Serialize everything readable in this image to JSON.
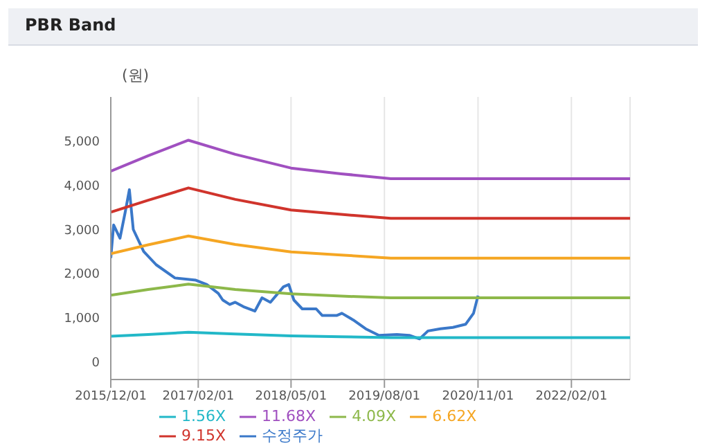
{
  "chart_data": {
    "type": "line",
    "title": "PBR Band",
    "ylabel": "(원)",
    "xlim": [
      "2015-12-01",
      "2022-11-15"
    ],
    "xticks": [
      {
        "value": "2015-12-01",
        "label": "2015/12/01"
      },
      {
        "value": "2017-02-01",
        "label": "2017/02/01"
      },
      {
        "value": "2018-05-01",
        "label": "2018/05/01"
      },
      {
        "value": "2019-08-01",
        "label": "2019/08/01"
      },
      {
        "value": "2020-11-01",
        "label": "2020/11/01"
      },
      {
        "value": "2022-02-01",
        "label": "2022/02/01"
      }
    ],
    "ylim": [
      -400,
      6000
    ],
    "yticks": [
      0,
      {
        "value": 1000,
        "label": "1,000"
      },
      {
        "value": 2000,
        "label": "2,000"
      },
      {
        "value": 3000,
        "label": "3,000"
      },
      {
        "value": 4000,
        "label": "4,000"
      },
      {
        "value": 5000,
        "label": "5,000"
      }
    ],
    "grid": "x",
    "legend": "bottom",
    "marker": "none",
    "line_style": "solid",
    "series": [
      {
        "name": "수정주가",
        "color": "#3a78c9",
        "x": [
          "2015-12-01",
          "2015-12-15",
          "2016-01-15",
          "2016-02-10",
          "2016-03-01",
          "2016-03-20",
          "2016-05-10",
          "2016-07-10",
          "2016-10-10",
          "2017-01-20",
          "2017-03-15",
          "2017-05-10",
          "2017-06-01",
          "2017-07-05",
          "2017-08-01",
          "2017-09-10",
          "2017-11-05",
          "2017-12-10",
          "2018-01-20",
          "2018-03-25",
          "2018-04-20",
          "2018-05-15",
          "2018-06-25",
          "2018-09-01",
          "2018-10-01",
          "2018-12-10",
          "2019-01-05",
          "2019-03-01",
          "2019-05-01",
          "2019-07-05",
          "2019-10-01",
          "2019-12-01",
          "2020-01-20",
          "2020-03-01",
          "2020-05-01",
          "2020-07-01",
          "2020-09-01",
          "2020-10-10",
          "2020-11-01"
        ],
        "values": [
          2350,
          3100,
          2800,
          3400,
          3900,
          3000,
          2500,
          2200,
          1900,
          1850,
          1750,
          1550,
          1400,
          1300,
          1350,
          1250,
          1150,
          1450,
          1350,
          1700,
          1750,
          1400,
          1200,
          1200,
          1050,
          1050,
          1100,
          950,
          750,
          600,
          620,
          600,
          520,
          700,
          750,
          780,
          850,
          1100,
          1500
        ]
      },
      {
        "name": "1.56X",
        "color": "#22b8c8",
        "x": [
          "2015-12-01",
          "2016-06-01",
          "2016-12-15",
          "2017-08-01",
          "2018-05-01",
          "2019-01-01",
          "2019-09-01",
          "2022-11-15"
        ],
        "values": [
          580,
          620,
          670,
          630,
          590,
          570,
          550,
          550
        ]
      },
      {
        "name": "4.09X",
        "color": "#8db84a",
        "x": [
          "2015-12-01",
          "2016-06-01",
          "2016-12-15",
          "2017-08-01",
          "2018-05-01",
          "2019-01-01",
          "2019-09-01",
          "2022-11-15"
        ],
        "values": [
          1510,
          1640,
          1760,
          1640,
          1540,
          1490,
          1450,
          1450
        ]
      },
      {
        "name": "6.62X",
        "color": "#f5a623",
        "x": [
          "2015-12-01",
          "2016-06-01",
          "2016-12-15",
          "2017-08-01",
          "2018-05-01",
          "2019-01-01",
          "2019-09-01",
          "2022-11-15"
        ],
        "values": [
          2450,
          2650,
          2850,
          2660,
          2490,
          2420,
          2350,
          2350
        ]
      },
      {
        "name": "9.15X",
        "color": "#d0342c",
        "x": [
          "2015-12-01",
          "2016-06-01",
          "2016-12-15",
          "2017-08-01",
          "2018-05-01",
          "2019-01-01",
          "2019-09-01",
          "2022-11-15"
        ],
        "values": [
          3390,
          3660,
          3940,
          3680,
          3440,
          3340,
          3250,
          3250
        ]
      },
      {
        "name": "11.68X",
        "color": "#a050c0",
        "x": [
          "2015-12-01",
          "2016-06-01",
          "2016-12-15",
          "2017-08-01",
          "2018-05-01",
          "2019-01-01",
          "2019-09-01",
          "2022-11-15"
        ],
        "values": [
          4320,
          4670,
          5020,
          4700,
          4390,
          4260,
          4150,
          4150
        ]
      }
    ]
  }
}
